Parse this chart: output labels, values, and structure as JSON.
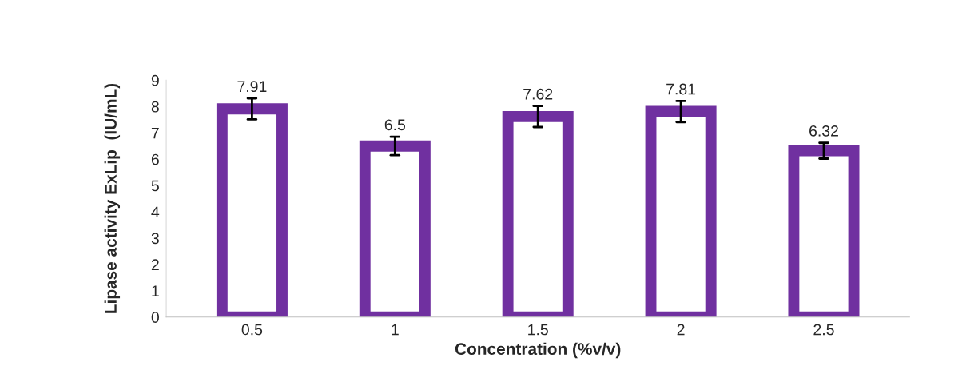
{
  "chart_data": {
    "type": "bar",
    "xlabel": "Concentration (%v/v)",
    "ylabel": "Lipase activity ExLip  (IU/mL)",
    "categories": [
      "0.5",
      "1",
      "1.5",
      "2",
      "2.5"
    ],
    "values": [
      7.91,
      6.5,
      7.62,
      7.81,
      6.32
    ],
    "color": "#7030a0",
    "errors": [
      0.4,
      0.35,
      0.4,
      0.4,
      0.3
    ],
    "ylim": [
      0,
      9
    ],
    "yticks": [
      0,
      1,
      2,
      3,
      4,
      5,
      6,
      7,
      8,
      9
    ],
    "data_labels": true,
    "grid": false,
    "legend": false
  }
}
